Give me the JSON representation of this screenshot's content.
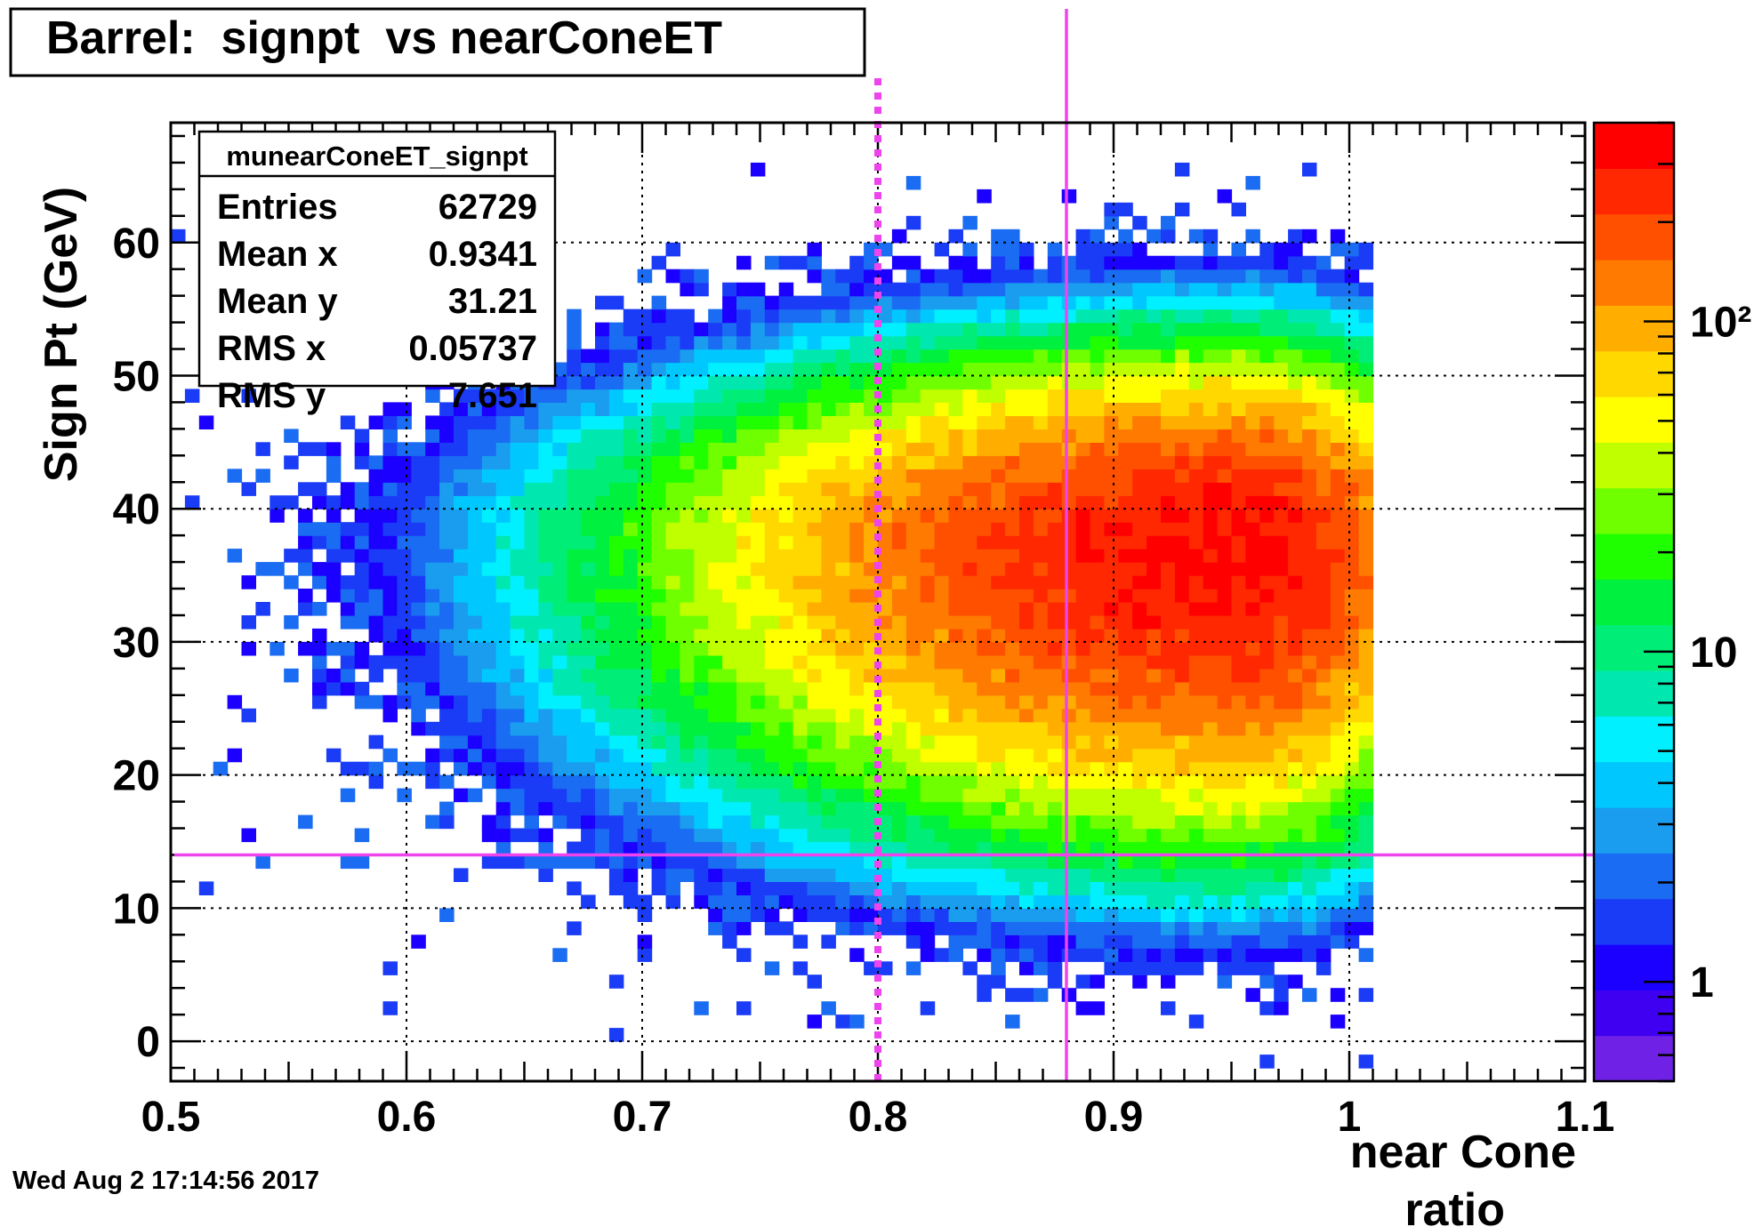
{
  "chart_data": {
    "type": "heatmap",
    "title": "Barrel:  signpt  vs nearConeET",
    "xlabel": "near Cone ratio",
    "ylabel": "Sign Pt (GeV)",
    "xlim": [
      0.5,
      1.1
    ],
    "ylim": [
      -3,
      69
    ],
    "x_ticks": [
      "0.5",
      "0.6",
      "0.7",
      "0.8",
      "0.9",
      "1",
      "1.1"
    ],
    "y_ticks": [
      "0",
      "10",
      "20",
      "30",
      "40",
      "50",
      "60"
    ],
    "grid": true,
    "z_scale": "log",
    "zlim": [
      0.5,
      400
    ],
    "z_ticks": [
      {
        "value": 1,
        "label": "1"
      },
      {
        "value": 10,
        "label": "10"
      },
      {
        "value": 100,
        "label": "10²"
      }
    ],
    "stats": {
      "name": "munearConeET_signpt",
      "rows": [
        {
          "label": "Entries",
          "value": "62729"
        },
        {
          "label": "Mean x",
          "value": "0.9341"
        },
        {
          "label": "Mean y",
          "value": "31.21"
        },
        {
          "label": "RMS x",
          "value": "0.05737"
        },
        {
          "label": "RMS y",
          "value": "7.651"
        }
      ]
    },
    "distribution": {
      "mean_x": 0.9341,
      "mean_y": 31.21,
      "rms_x": 0.05737,
      "rms_y": 7.651,
      "peak_x": 0.955,
      "peak_y": 37,
      "x_max": 1.01,
      "y_min": -2.5,
      "y_max": 67
    },
    "cut_lines": [
      {
        "orientation": "vertical",
        "x": 0.8,
        "style": "dotted",
        "color": "#ee44ee"
      },
      {
        "orientation": "vertical",
        "x": 0.88,
        "style": "solid",
        "color": "#ee44ee"
      },
      {
        "orientation": "horizontal",
        "y": 14,
        "style": "solid",
        "color": "#ee44ee"
      }
    ],
    "palette": [
      "#6f22e6",
      "#3f00f2",
      "#1b00ff",
      "#1a3cf7",
      "#1a6cf2",
      "#1a9cef",
      "#00c8ff",
      "#00f0ff",
      "#00e8b0",
      "#00ee78",
      "#00f040",
      "#20ff00",
      "#70ff00",
      "#c0ff00",
      "#ffff00",
      "#ffd800",
      "#ffae00",
      "#ff7a00",
      "#ff5000",
      "#ff2800",
      "#ff0000"
    ]
  },
  "timestamp": "Wed Aug  2 17:14:56 2017"
}
